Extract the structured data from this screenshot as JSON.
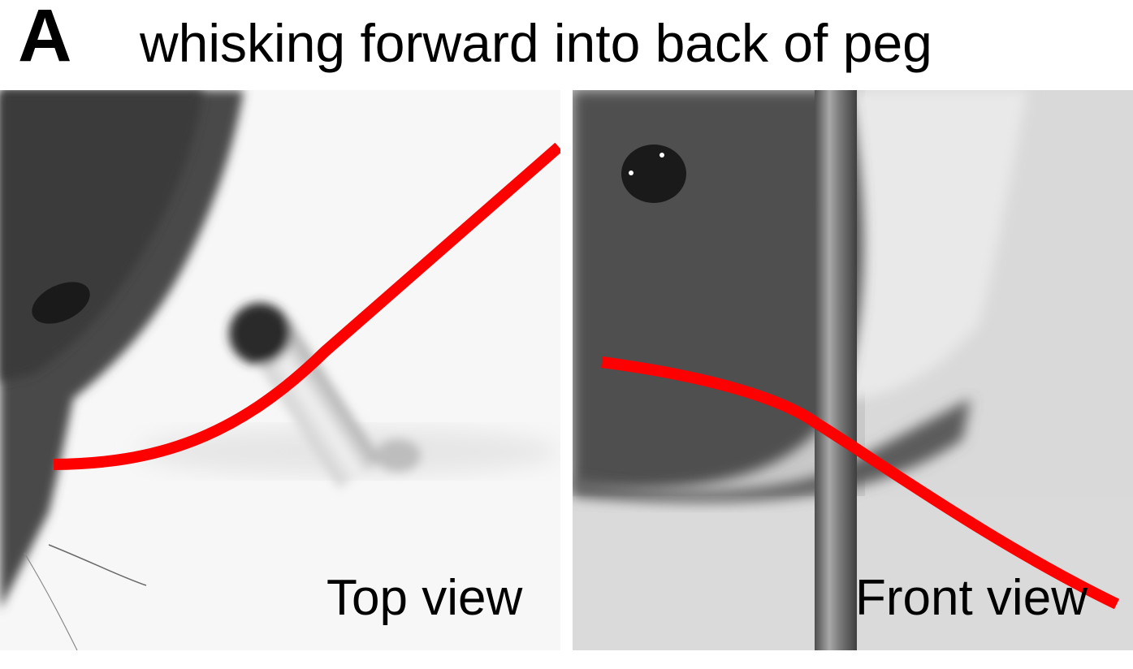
{
  "figure": {
    "panel_letter": "A",
    "title": "whisking forward into back of peg",
    "panels": [
      {
        "label": "Top view"
      },
      {
        "label": "Front view"
      }
    ],
    "whisker_color": "#ff0000"
  }
}
